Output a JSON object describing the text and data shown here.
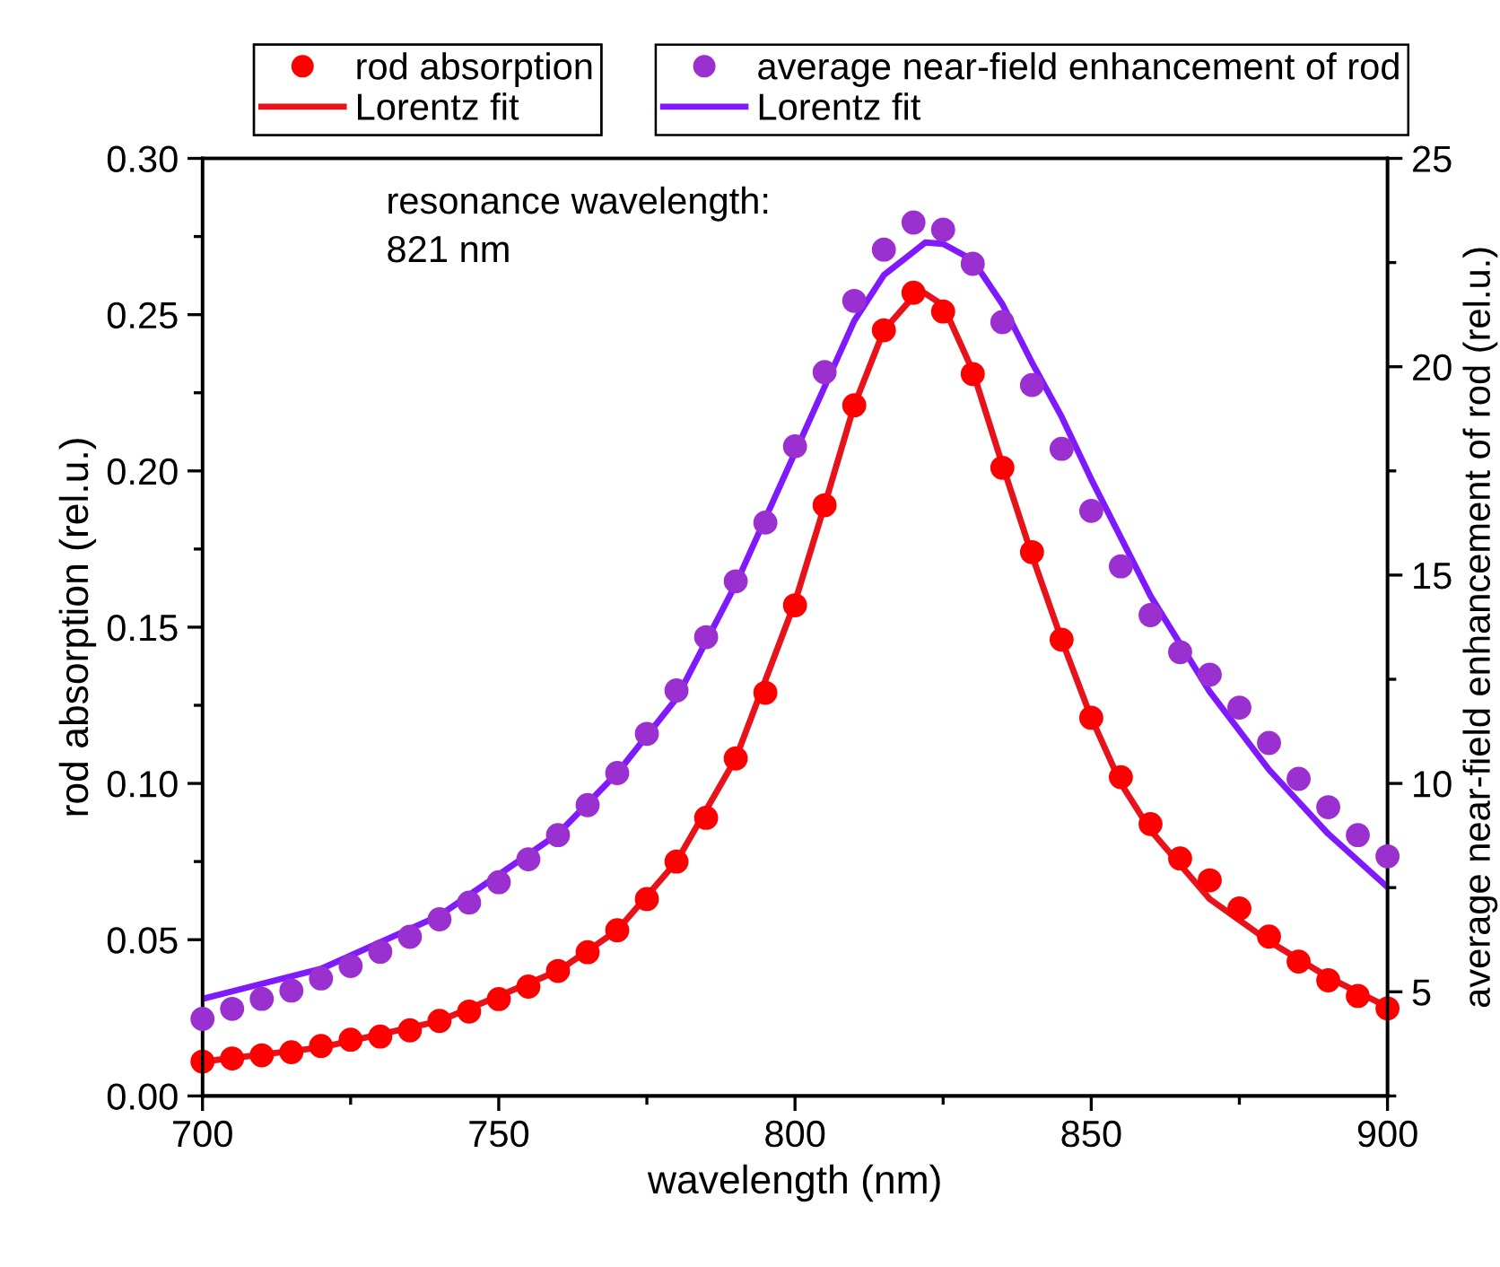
{
  "chart_data": {
    "type": "scatter",
    "xlabel": "wavelength (nm)",
    "ylabel": "rod absorption (rel.u.)",
    "y2label": "average near-field enhancement of rod (rel.u.)",
    "xlim": [
      700,
      900
    ],
    "xticks": [
      700,
      750,
      800,
      850,
      900
    ],
    "ylim": [
      0,
      0.3
    ],
    "yticks": [
      {
        "value": 0,
        "label": "0.00"
      },
      {
        "value": 0.05,
        "label": "0.05"
      },
      {
        "value": 0.1,
        "label": "0.10"
      },
      {
        "value": 0.15,
        "label": "0.15"
      },
      {
        "value": 0.2,
        "label": "0.20"
      },
      {
        "value": 0.25,
        "label": "0.25"
      },
      {
        "value": 0.3,
        "label": "0.30"
      }
    ],
    "y2lim": [
      2.5,
      25
    ],
    "y2ticks": [
      5,
      10,
      15,
      20,
      25
    ],
    "legend": "top",
    "grid": false,
    "annotations": [
      "resonance wavelength:\n821 nm"
    ],
    "x": [
      700,
      705,
      710,
      715,
      720,
      725,
      730,
      735,
      740,
      745,
      750,
      755,
      760,
      765,
      770,
      775,
      780,
      785,
      790,
      795,
      800,
      805,
      810,
      815,
      820,
      825,
      830,
      835,
      840,
      845,
      850,
      855,
      860,
      865,
      870,
      875,
      880,
      885,
      890,
      895,
      900
    ],
    "series": [
      {
        "name": "rod absorption",
        "marker": "circle",
        "color": "#ff0000",
        "values": [
          0.011,
          0.012,
          0.013,
          0.014,
          0.016,
          0.018,
          0.019,
          0.021,
          0.024,
          0.027,
          0.031,
          0.035,
          0.04,
          0.046,
          0.053,
          0.063,
          0.075,
          0.089,
          0.108,
          0.129,
          0.157,
          0.189,
          0.221,
          0.245,
          0.257,
          0.251,
          0.231,
          0.201,
          0.174,
          0.146,
          0.121,
          0.102,
          0.087,
          0.076,
          0.069,
          0.06,
          0.051,
          0.043,
          0.037,
          0.032,
          0.028
        ]
      },
      {
        "name": "Lorentz fit",
        "type": "line",
        "color": "#e8121a",
        "line_style": "solid",
        "x": [
          700,
          720,
          740,
          760,
          770,
          780,
          790,
          800,
          805,
          810,
          815,
          821,
          825,
          830,
          835,
          840,
          845,
          850,
          855,
          860,
          870,
          880,
          890,
          900
        ],
        "values": [
          0.011,
          0.0155,
          0.024,
          0.04,
          0.053,
          0.075,
          0.108,
          0.158,
          0.189,
          0.221,
          0.245,
          0.258,
          0.253,
          0.232,
          0.202,
          0.173,
          0.146,
          0.121,
          0.1,
          0.085,
          0.063,
          0.0495,
          0.038,
          0.0285
        ]
      },
      {
        "name": "average near-field enhancement of rod",
        "marker": "circle",
        "axis": "y2",
        "color": "#9b30d0",
        "values": [
          4.35,
          4.59,
          4.83,
          5.03,
          5.32,
          5.62,
          5.96,
          6.32,
          6.74,
          7.14,
          7.63,
          8.18,
          8.76,
          9.48,
          10.25,
          11.19,
          12.23,
          13.51,
          14.85,
          16.26,
          18.09,
          19.87,
          21.58,
          22.81,
          23.46,
          23.29,
          22.47,
          21.07,
          19.56,
          18.03,
          16.54,
          15.21,
          14.04,
          13.15,
          12.61,
          11.82,
          10.97,
          10.11,
          9.43,
          8.76,
          8.25
        ]
      },
      {
        "name": "Lorentz fit",
        "type": "line",
        "axis": "y2",
        "color": "#7f1aff",
        "line_style": "solid",
        "x": [
          700,
          720,
          740,
          760,
          770,
          780,
          790,
          800,
          810,
          815,
          822,
          825,
          830,
          835,
          840,
          845,
          850,
          855,
          860,
          870,
          880,
          890,
          900
        ],
        "values": [
          4.83,
          5.55,
          6.83,
          8.79,
          10.25,
          12.04,
          14.78,
          17.94,
          21.1,
          22.2,
          22.98,
          22.95,
          22.56,
          21.5,
          20.1,
          18.8,
          17.3,
          15.9,
          14.5,
          12.2,
          10.33,
          8.79,
          7.51
        ]
      }
    ]
  }
}
